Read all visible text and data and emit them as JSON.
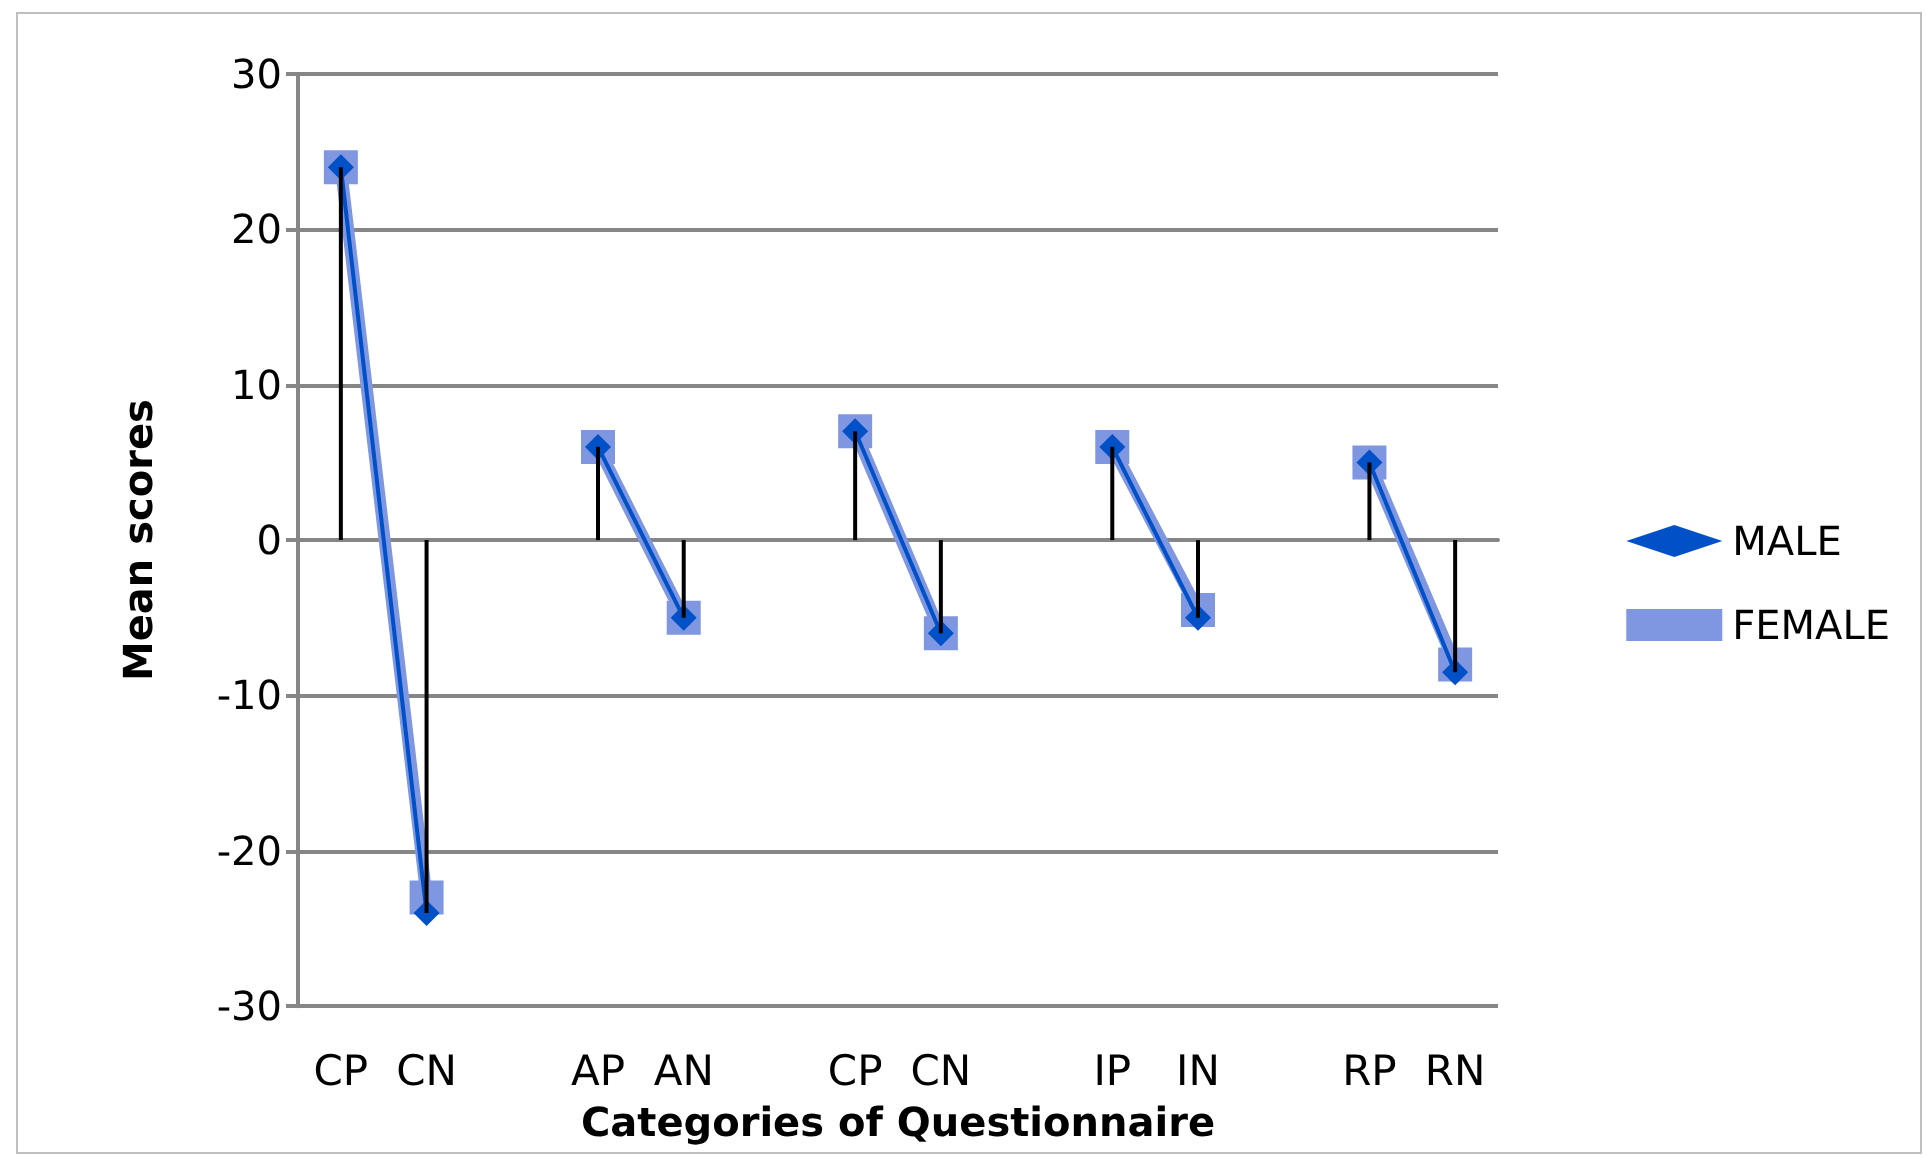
{
  "chart_data": {
    "type": "line",
    "xlabel": "Categories of Questionnaire",
    "ylabel": "Mean scores",
    "categories": [
      "CP",
      "CN",
      null,
      "AP",
      "AN",
      null,
      "CP",
      "CN",
      null,
      "IP",
      "IN",
      null,
      "RP",
      "RN"
    ],
    "series": [
      {
        "name": "MALE",
        "color": "#0050c8",
        "marker": "diamond",
        "values": [
          24,
          -24,
          null,
          6,
          -5,
          null,
          7,
          -6,
          null,
          6,
          -5,
          null,
          5,
          -8.5
        ]
      },
      {
        "name": "FEMALE",
        "color": "#7f96e0",
        "marker": "square",
        "values": [
          24,
          -23,
          null,
          6,
          -5,
          null,
          7,
          -6,
          null,
          6,
          -4.5,
          null,
          5,
          -8
        ]
      },
      {
        "type": "bar",
        "color": "#000000",
        "values": [
          24,
          -24,
          null,
          6,
          -5,
          null,
          7,
          -6,
          null,
          6,
          -5,
          null,
          5,
          -8.5
        ]
      }
    ],
    "ylim": [
      -30,
      30
    ],
    "yticks": [
      -30,
      -20,
      -10,
      0,
      10,
      20,
      30
    ],
    "grid": "y",
    "legend": "right"
  }
}
